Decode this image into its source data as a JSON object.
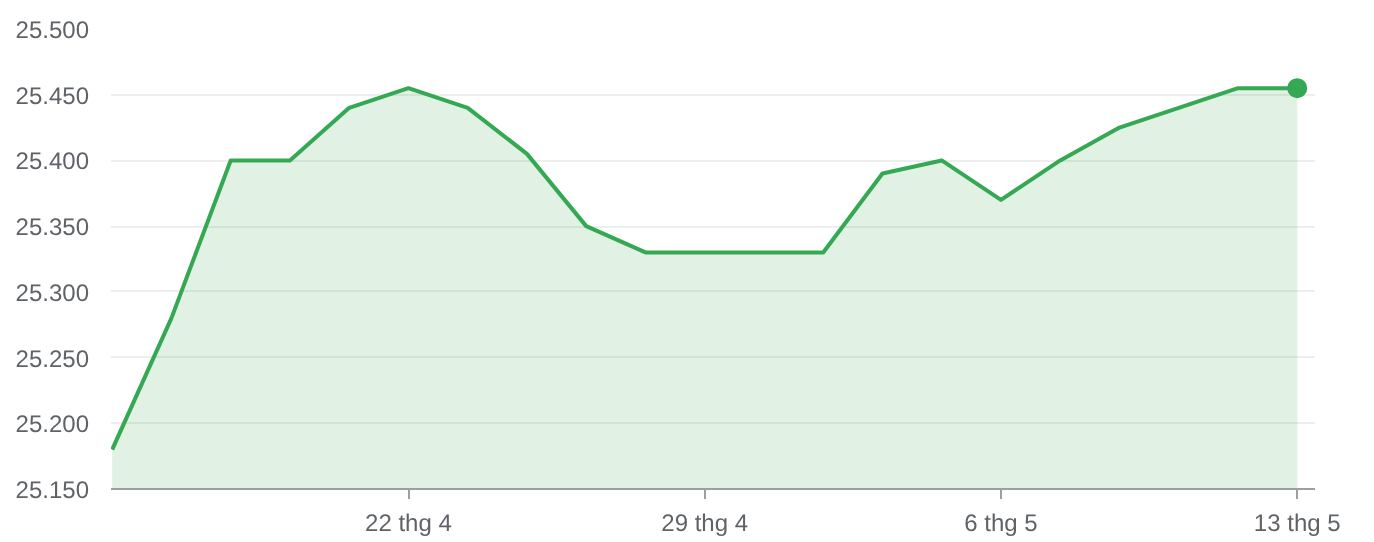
{
  "chart_data": {
    "type": "area",
    "categories": [
      null,
      null,
      null,
      null,
      null,
      "22 thg 4",
      null,
      null,
      null,
      null,
      "29 thg 4",
      null,
      null,
      null,
      null,
      "6 thg 5",
      null,
      null,
      null,
      null,
      "13 thg 5"
    ],
    "series": [
      {
        "color": "#34a853",
        "values": [
          25.18,
          25.28,
          25.4,
          25.4,
          25.44,
          25.455,
          25.44,
          25.405,
          25.35,
          25.33,
          25.33,
          25.33,
          25.33,
          25.39,
          25.4,
          25.37,
          25.4,
          25.425,
          25.44,
          25.455,
          25.455
        ]
      },
      {
        "type": "scatter",
        "marker": "circle",
        "color": "#34a853",
        "values": [
          null,
          null,
          null,
          null,
          null,
          null,
          null,
          null,
          null,
          null,
          null,
          null,
          null,
          null,
          null,
          null,
          null,
          null,
          null,
          null,
          25.455
        ]
      }
    ],
    "ylim": [
      25.15,
      25.5
    ],
    "yticks": [
      {
        "value": 25.15,
        "label": "25.150"
      },
      {
        "value": 25.2,
        "label": "25.200"
      },
      {
        "value": 25.25,
        "label": "25.250"
      },
      {
        "value": 25.3,
        "label": "25.300"
      },
      {
        "value": 25.35,
        "label": "25.350"
      },
      {
        "value": 25.4,
        "label": "25.400"
      },
      {
        "value": 25.45,
        "label": "25.450"
      },
      {
        "value": 25.5,
        "label": "25.500"
      }
    ],
    "grid": "y"
  }
}
